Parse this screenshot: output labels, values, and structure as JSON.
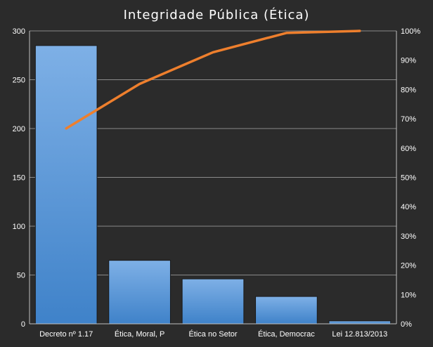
{
  "chart_data": {
    "type": "bar",
    "title": "Integridade Pública (Ética)",
    "categories": [
      "Decreto nº 1.17",
      "Ética, Moral, P",
      "Ética no Setor",
      "Ética, Democrac",
      "Lei 12.813/2013"
    ],
    "values": [
      285,
      65,
      46,
      28,
      3
    ],
    "cumulative_percent": [
      66.7,
      81.9,
      92.7,
      99.3,
      100
    ],
    "y_left": {
      "range": [
        0,
        300
      ],
      "ticks": [
        "0",
        "50",
        "100",
        "150",
        "200",
        "250",
        "300"
      ]
    },
    "y_right": {
      "range": [
        0,
        100
      ],
      "ticks": [
        "0%",
        "10%",
        "20%",
        "30%",
        "40%",
        "50%",
        "60%",
        "70%",
        "80%",
        "90%",
        "100%"
      ]
    },
    "grid": true,
    "legend": "none",
    "colors": {
      "background": "#2b2b2b",
      "bar": "#4a8fd4",
      "bar_light": "#7eb0e6",
      "line": "#ee7f2d",
      "grid": "#8a8a8a",
      "axis": "#bfbfbf",
      "text": "#ffffff"
    }
  }
}
